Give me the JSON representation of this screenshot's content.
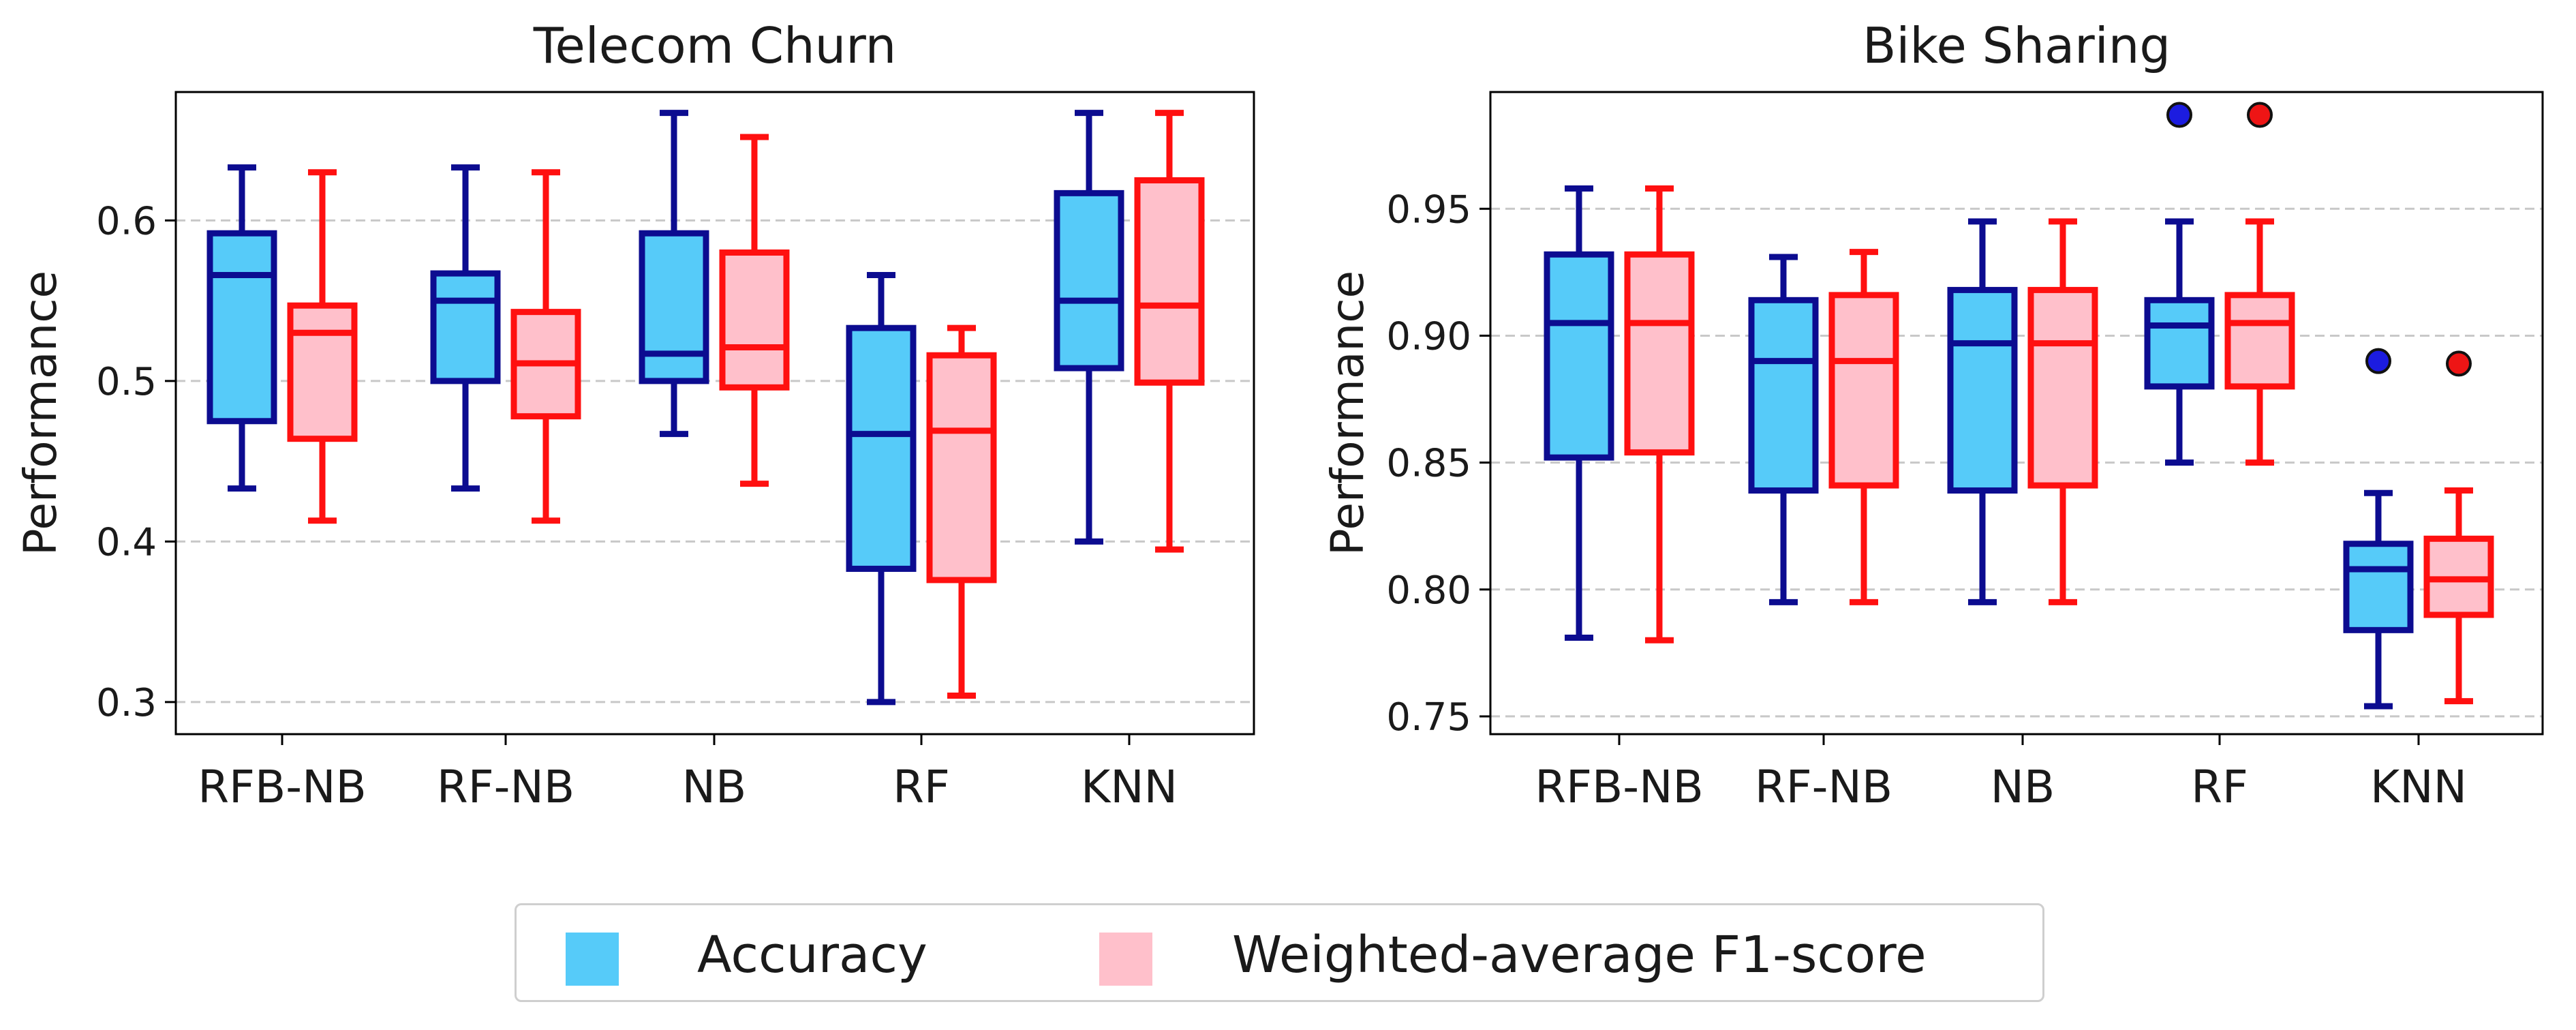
{
  "colors": {
    "acc_fill": "#56cbf9",
    "acc_edge": "#0c0c90",
    "f1_fill": "#ffc0cb",
    "f1_edge": "#ff1010",
    "flier_acc": "#1c1ce0",
    "flier_f1": "#ee1515",
    "grid": "#c8c8c8",
    "axis": "#000000"
  },
  "legend": {
    "accuracy_label": "Accuracy",
    "f1_label": "Weighted-average F1-score"
  },
  "chart_data": [
    {
      "type": "boxplot",
      "title": "Telecom Churn",
      "ylabel": "Performance",
      "categories": [
        "RFB-NB",
        "RF-NB",
        "NB",
        "RF",
        "KNN"
      ],
      "ylim": [
        0.28,
        0.68
      ],
      "yticks": [
        0.3,
        0.4,
        0.5,
        0.6
      ],
      "ytick_labels": [
        "0.3",
        "0.4",
        "0.5",
        "0.6"
      ],
      "grid": "y-dashed",
      "series": [
        {
          "name": "Accuracy",
          "boxes": [
            {
              "whislo": 0.433,
              "q1": 0.475,
              "med": 0.566,
              "q3": 0.592,
              "whishi": 0.633,
              "fliers": []
            },
            {
              "whislo": 0.433,
              "q1": 0.5,
              "med": 0.55,
              "q3": 0.567,
              "whishi": 0.633,
              "fliers": []
            },
            {
              "whislo": 0.467,
              "q1": 0.5,
              "med": 0.517,
              "q3": 0.592,
              "whishi": 0.667,
              "fliers": []
            },
            {
              "whislo": 0.3,
              "q1": 0.383,
              "med": 0.467,
              "q3": 0.533,
              "whishi": 0.566,
              "fliers": []
            },
            {
              "whislo": 0.4,
              "q1": 0.508,
              "med": 0.55,
              "q3": 0.617,
              "whishi": 0.667,
              "fliers": []
            }
          ]
        },
        {
          "name": "Weighted-average F1-score",
          "boxes": [
            {
              "whislo": 0.413,
              "q1": 0.464,
              "med": 0.53,
              "q3": 0.547,
              "whishi": 0.63,
              "fliers": []
            },
            {
              "whislo": 0.413,
              "q1": 0.478,
              "med": 0.511,
              "q3": 0.543,
              "whishi": 0.63,
              "fliers": []
            },
            {
              "whislo": 0.436,
              "q1": 0.496,
              "med": 0.521,
              "q3": 0.58,
              "whishi": 0.652,
              "fliers": []
            },
            {
              "whislo": 0.304,
              "q1": 0.376,
              "med": 0.469,
              "q3": 0.516,
              "whishi": 0.533,
              "fliers": []
            },
            {
              "whislo": 0.395,
              "q1": 0.499,
              "med": 0.547,
              "q3": 0.625,
              "whishi": 0.667,
              "fliers": []
            }
          ]
        }
      ]
    },
    {
      "type": "boxplot",
      "title": "Bike Sharing",
      "ylabel": "Performance",
      "categories": [
        "RFB-NB",
        "RF-NB",
        "NB",
        "RF",
        "KNN"
      ],
      "ylim": [
        0.743,
        0.996
      ],
      "yticks": [
        0.75,
        0.8,
        0.85,
        0.9,
        0.95
      ],
      "ytick_labels": [
        "0.75",
        "0.80",
        "0.85",
        "0.90",
        "0.95"
      ],
      "grid": "y-dashed",
      "series": [
        {
          "name": "Accuracy",
          "boxes": [
            {
              "whislo": 0.781,
              "q1": 0.852,
              "med": 0.905,
              "q3": 0.932,
              "whishi": 0.958,
              "fliers": []
            },
            {
              "whislo": 0.795,
              "q1": 0.839,
              "med": 0.89,
              "q3": 0.914,
              "whishi": 0.931,
              "fliers": []
            },
            {
              "whislo": 0.795,
              "q1": 0.839,
              "med": 0.897,
              "q3": 0.918,
              "whishi": 0.945,
              "fliers": []
            },
            {
              "whislo": 0.85,
              "q1": 0.88,
              "med": 0.904,
              "q3": 0.914,
              "whishi": 0.945,
              "fliers": [
                0.987
              ]
            },
            {
              "whislo": 0.754,
              "q1": 0.784,
              "med": 0.808,
              "q3": 0.818,
              "whishi": 0.838,
              "fliers": [
                0.89
              ]
            }
          ]
        },
        {
          "name": "Weighted-average F1-score",
          "boxes": [
            {
              "whislo": 0.78,
              "q1": 0.854,
              "med": 0.905,
              "q3": 0.932,
              "whishi": 0.958,
              "fliers": []
            },
            {
              "whislo": 0.795,
              "q1": 0.841,
              "med": 0.89,
              "q3": 0.916,
              "whishi": 0.933,
              "fliers": []
            },
            {
              "whislo": 0.795,
              "q1": 0.841,
              "med": 0.897,
              "q3": 0.918,
              "whishi": 0.945,
              "fliers": []
            },
            {
              "whislo": 0.85,
              "q1": 0.88,
              "med": 0.905,
              "q3": 0.916,
              "whishi": 0.945,
              "fliers": [
                0.987
              ]
            },
            {
              "whislo": 0.756,
              "q1": 0.79,
              "med": 0.804,
              "q3": 0.82,
              "whishi": 0.839,
              "fliers": [
                0.889
              ]
            }
          ]
        }
      ]
    }
  ]
}
